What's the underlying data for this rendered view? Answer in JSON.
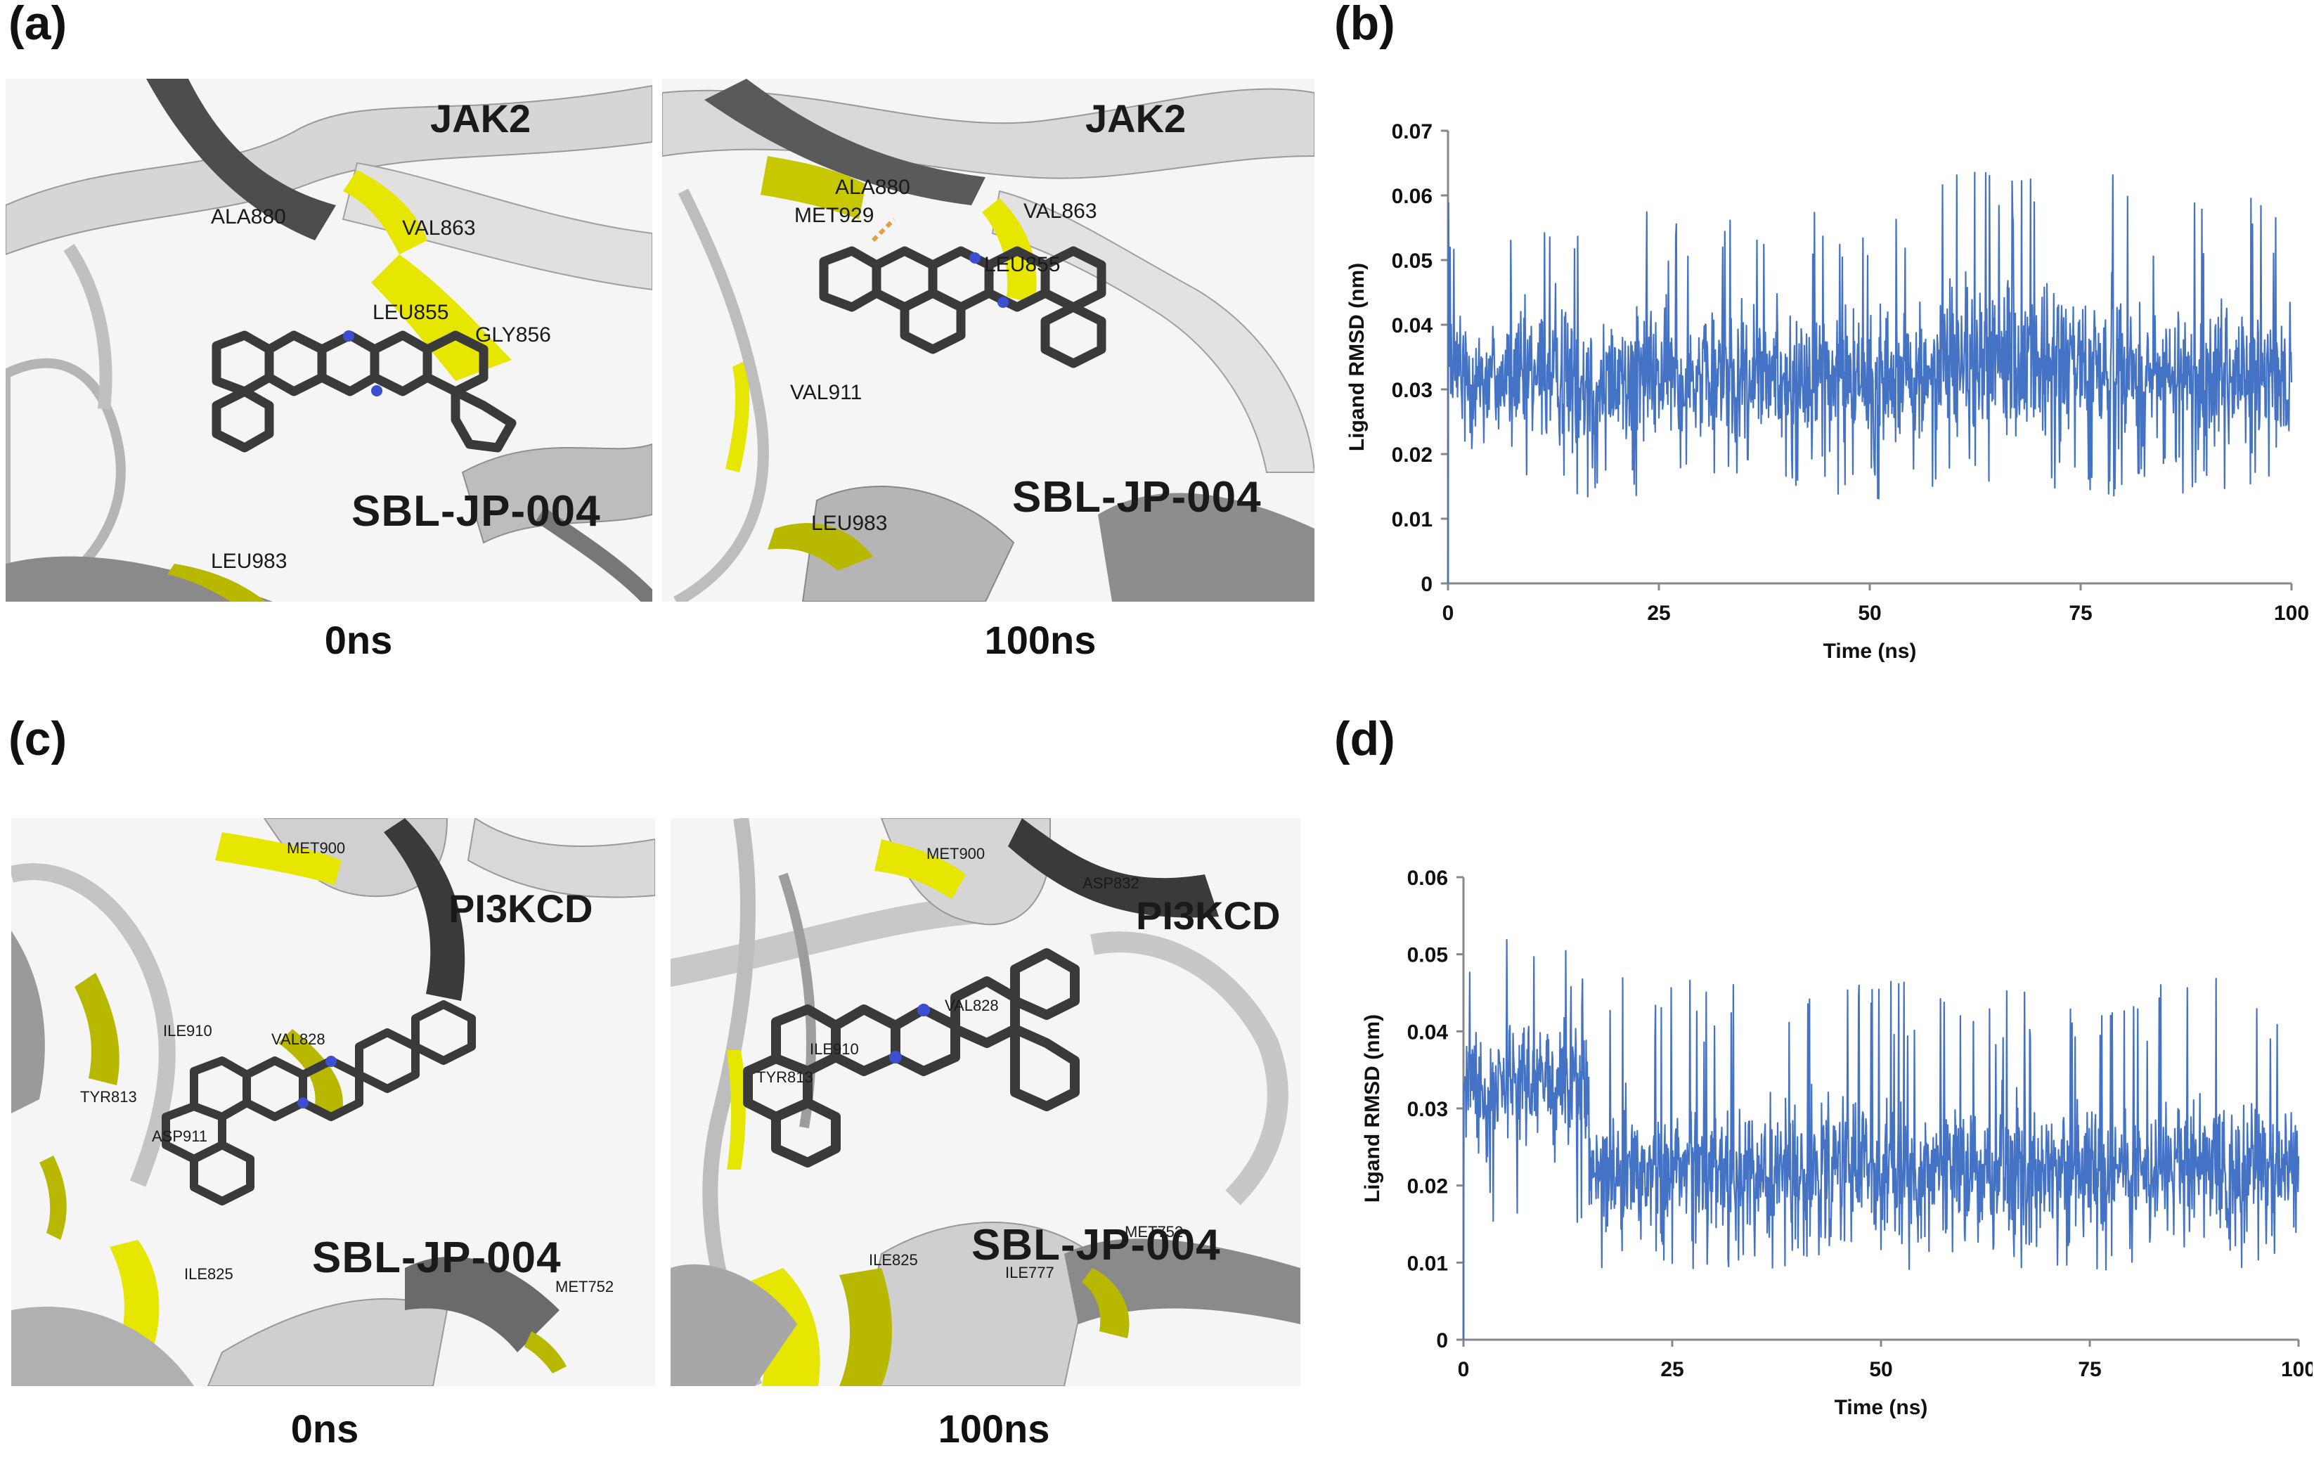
{
  "panels": {
    "a": {
      "letter": "(a)",
      "left": {
        "caption": "0ns",
        "protein": "JAK2",
        "ligand": "SBL-JP-004",
        "residues": [
          "ALA880",
          "VAL863",
          "LEU855",
          "GLY856",
          "LEU983"
        ]
      },
      "right": {
        "caption": "100ns",
        "protein": "JAK2",
        "ligand": "SBL-JP-004",
        "residues": [
          "ALA880",
          "MET929",
          "VAL863",
          "LEU855",
          "VAL911",
          "LEU983"
        ]
      }
    },
    "b": {
      "letter": "(b)"
    },
    "c": {
      "letter": "(c)",
      "left": {
        "caption": "0ns",
        "protein": "PI3KCD",
        "ligand": "SBL-JP-004",
        "residues": [
          "MET900",
          "ILE910",
          "VAL828",
          "TYR813",
          "ASP911",
          "ILE825",
          "MET752"
        ]
      },
      "right": {
        "caption": "100ns",
        "protein": "PI3KCD",
        "ligand": "SBL-JP-004",
        "residues": [
          "MET900",
          "ASP832",
          "VAL828",
          "ILE910",
          "TYR813",
          "ILE825",
          "ILE777",
          "MET752"
        ]
      }
    },
    "d": {
      "letter": "(d)"
    }
  },
  "colors": {
    "line": "#4472c4",
    "highlight": "#e6e600",
    "ribbon": "#d9d9d9",
    "dark": "#3a3a3a"
  },
  "chart_data": [
    {
      "id": "b",
      "type": "line",
      "title": "",
      "xlabel": "Time (ns)",
      "ylabel": "Ligand RMSD (nm)",
      "xlim": [
        0,
        100
      ],
      "ylim": [
        0,
        0.07
      ],
      "xticks": [
        0,
        25,
        50,
        75,
        100
      ],
      "yticks": [
        0,
        0.01,
        0.02,
        0.03,
        0.04,
        0.05,
        0.06,
        0.07
      ],
      "ytick_labels": [
        "0",
        "0.01",
        "0.02",
        "0.03",
        "0.04",
        "0.05",
        "0.06",
        "0.07"
      ],
      "series": [
        {
          "name": "JAK2 / SBL-JP-004",
          "segments": [
            {
              "x": [
                0,
                58
              ],
              "mean": 0.032,
              "min": 0.013,
              "max": 0.059
            },
            {
              "x": [
                58,
                80
              ],
              "mean": 0.034,
              "min": 0.012,
              "max": 0.065
            },
            {
              "x": [
                80,
                100
              ],
              "mean": 0.032,
              "min": 0.014,
              "max": 0.06
            }
          ],
          "start": 0.0
        }
      ]
    },
    {
      "id": "d",
      "type": "line",
      "title": "",
      "xlabel": "Time (ns)",
      "ylabel": "Ligand RMSD (nm)",
      "xlim": [
        0,
        100
      ],
      "ylim": [
        0,
        0.06
      ],
      "xticks": [
        0,
        25,
        50,
        75,
        100
      ],
      "yticks": [
        0,
        0.01,
        0.02,
        0.03,
        0.04,
        0.05,
        0.06
      ],
      "ytick_labels": [
        "0",
        "0.01",
        "0.02",
        "0.03",
        "0.04",
        "0.05",
        "0.06"
      ],
      "series": [
        {
          "name": "PI3KCD / SBL-JP-004",
          "segments": [
            {
              "x": [
                0,
                15
              ],
              "mean": 0.033,
              "min": 0.012,
              "max": 0.052
            },
            {
              "x": [
                15,
                100
              ],
              "mean": 0.022,
              "min": 0.009,
              "max": 0.047
            }
          ],
          "start": 0.0
        }
      ]
    }
  ]
}
